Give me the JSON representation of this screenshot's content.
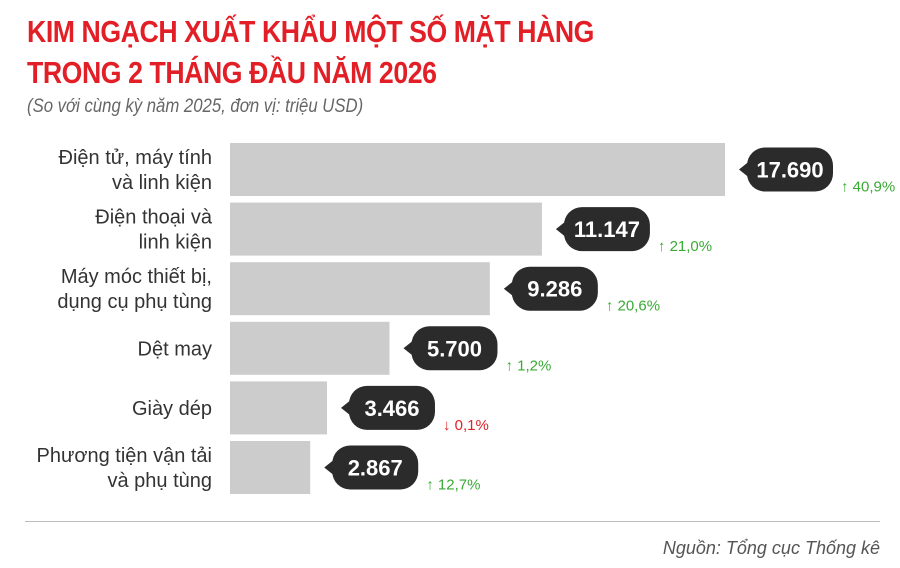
{
  "title_line1": "KIM NGẠCH XUẤT KHẨU MỘT SỐ MẶT HÀNG",
  "title_line2": "TRONG 2 THÁNG ĐẦU NĂM 2026",
  "subtitle": "(So với cùng kỳ năm 2025, đơn vị: triệu USD)",
  "source": "Nguồn: Tổng cục Thống kê",
  "colors": {
    "title": "#e21f26",
    "bar": "#cccccc",
    "bubble": "#2b2b2b",
    "up": "#3aaa35",
    "down": "#e21f26"
  },
  "chart_data": {
    "type": "bar",
    "orientation": "horizontal",
    "categories": [
      [
        "Điện tử, máy tính",
        "và linh kiện"
      ],
      [
        "Điện thoại và",
        "linh kiện"
      ],
      [
        "Máy móc thiết bị,",
        "dụng cụ phụ tùng"
      ],
      [
        "Dệt may"
      ],
      [
        "Giày dép"
      ],
      [
        "Phương tiện vận tải",
        "và phụ tùng"
      ]
    ],
    "values": [
      17690,
      11147,
      9286,
      5700,
      3466,
      2867
    ],
    "value_labels": [
      "17.690",
      "11.147",
      "9.286",
      "5.700",
      "3.466",
      "2.867"
    ],
    "changes": [
      {
        "dir": "up",
        "label": "40,9%"
      },
      {
        "dir": "up",
        "label": "21,0%"
      },
      {
        "dir": "up",
        "label": "20,6%"
      },
      {
        "dir": "up",
        "label": "1,2%"
      },
      {
        "dir": "down",
        "label": "0,1%"
      },
      {
        "dir": "up",
        "label": "12,7%"
      }
    ]
  }
}
